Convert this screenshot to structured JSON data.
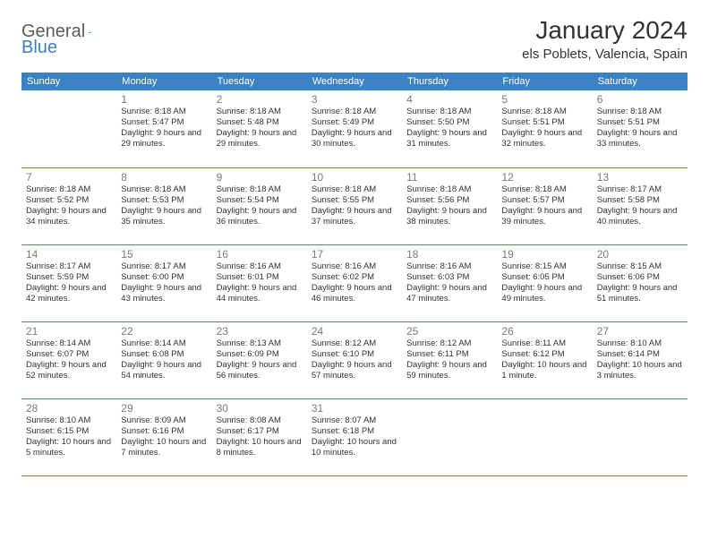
{
  "logo": {
    "part1": "General",
    "part2": "Blue"
  },
  "title": "January 2024",
  "location": "els Poblets, Valencia, Spain",
  "weekdays": [
    "Sunday",
    "Monday",
    "Tuesday",
    "Wednesday",
    "Thursday",
    "Friday",
    "Saturday"
  ],
  "colors": {
    "header_bg": "#3b82c4",
    "header_text": "#ffffff",
    "border": "#3b82c4",
    "daynum": "#7a7a7a",
    "body_text": "#333333",
    "logo_gray": "#5a5a5a",
    "logo_blue": "#3b7fc4"
  },
  "startOffset": 1,
  "days": [
    {
      "n": "1",
      "sunrise": "8:18 AM",
      "sunset": "5:47 PM",
      "daylight": "9 hours and 29 minutes."
    },
    {
      "n": "2",
      "sunrise": "8:18 AM",
      "sunset": "5:48 PM",
      "daylight": "9 hours and 29 minutes."
    },
    {
      "n": "3",
      "sunrise": "8:18 AM",
      "sunset": "5:49 PM",
      "daylight": "9 hours and 30 minutes."
    },
    {
      "n": "4",
      "sunrise": "8:18 AM",
      "sunset": "5:50 PM",
      "daylight": "9 hours and 31 minutes."
    },
    {
      "n": "5",
      "sunrise": "8:18 AM",
      "sunset": "5:51 PM",
      "daylight": "9 hours and 32 minutes."
    },
    {
      "n": "6",
      "sunrise": "8:18 AM",
      "sunset": "5:51 PM",
      "daylight": "9 hours and 33 minutes."
    },
    {
      "n": "7",
      "sunrise": "8:18 AM",
      "sunset": "5:52 PM",
      "daylight": "9 hours and 34 minutes."
    },
    {
      "n": "8",
      "sunrise": "8:18 AM",
      "sunset": "5:53 PM",
      "daylight": "9 hours and 35 minutes."
    },
    {
      "n": "9",
      "sunrise": "8:18 AM",
      "sunset": "5:54 PM",
      "daylight": "9 hours and 36 minutes."
    },
    {
      "n": "10",
      "sunrise": "8:18 AM",
      "sunset": "5:55 PM",
      "daylight": "9 hours and 37 minutes."
    },
    {
      "n": "11",
      "sunrise": "8:18 AM",
      "sunset": "5:56 PM",
      "daylight": "9 hours and 38 minutes."
    },
    {
      "n": "12",
      "sunrise": "8:18 AM",
      "sunset": "5:57 PM",
      "daylight": "9 hours and 39 minutes."
    },
    {
      "n": "13",
      "sunrise": "8:17 AM",
      "sunset": "5:58 PM",
      "daylight": "9 hours and 40 minutes."
    },
    {
      "n": "14",
      "sunrise": "8:17 AM",
      "sunset": "5:59 PM",
      "daylight": "9 hours and 42 minutes."
    },
    {
      "n": "15",
      "sunrise": "8:17 AM",
      "sunset": "6:00 PM",
      "daylight": "9 hours and 43 minutes."
    },
    {
      "n": "16",
      "sunrise": "8:16 AM",
      "sunset": "6:01 PM",
      "daylight": "9 hours and 44 minutes."
    },
    {
      "n": "17",
      "sunrise": "8:16 AM",
      "sunset": "6:02 PM",
      "daylight": "9 hours and 46 minutes."
    },
    {
      "n": "18",
      "sunrise": "8:16 AM",
      "sunset": "6:03 PM",
      "daylight": "9 hours and 47 minutes."
    },
    {
      "n": "19",
      "sunrise": "8:15 AM",
      "sunset": "6:05 PM",
      "daylight": "9 hours and 49 minutes."
    },
    {
      "n": "20",
      "sunrise": "8:15 AM",
      "sunset": "6:06 PM",
      "daylight": "9 hours and 51 minutes."
    },
    {
      "n": "21",
      "sunrise": "8:14 AM",
      "sunset": "6:07 PM",
      "daylight": "9 hours and 52 minutes."
    },
    {
      "n": "22",
      "sunrise": "8:14 AM",
      "sunset": "6:08 PM",
      "daylight": "9 hours and 54 minutes."
    },
    {
      "n": "23",
      "sunrise": "8:13 AM",
      "sunset": "6:09 PM",
      "daylight": "9 hours and 56 minutes."
    },
    {
      "n": "24",
      "sunrise": "8:12 AM",
      "sunset": "6:10 PM",
      "daylight": "9 hours and 57 minutes."
    },
    {
      "n": "25",
      "sunrise": "8:12 AM",
      "sunset": "6:11 PM",
      "daylight": "9 hours and 59 minutes."
    },
    {
      "n": "26",
      "sunrise": "8:11 AM",
      "sunset": "6:12 PM",
      "daylight": "10 hours and 1 minute."
    },
    {
      "n": "27",
      "sunrise": "8:10 AM",
      "sunset": "6:14 PM",
      "daylight": "10 hours and 3 minutes."
    },
    {
      "n": "28",
      "sunrise": "8:10 AM",
      "sunset": "6:15 PM",
      "daylight": "10 hours and 5 minutes."
    },
    {
      "n": "29",
      "sunrise": "8:09 AM",
      "sunset": "6:16 PM",
      "daylight": "10 hours and 7 minutes."
    },
    {
      "n": "30",
      "sunrise": "8:08 AM",
      "sunset": "6:17 PM",
      "daylight": "10 hours and 8 minutes."
    },
    {
      "n": "31",
      "sunrise": "8:07 AM",
      "sunset": "6:18 PM",
      "daylight": "10 hours and 10 minutes."
    }
  ],
  "labels": {
    "sunrise": "Sunrise:",
    "sunset": "Sunset:",
    "daylight": "Daylight:"
  }
}
